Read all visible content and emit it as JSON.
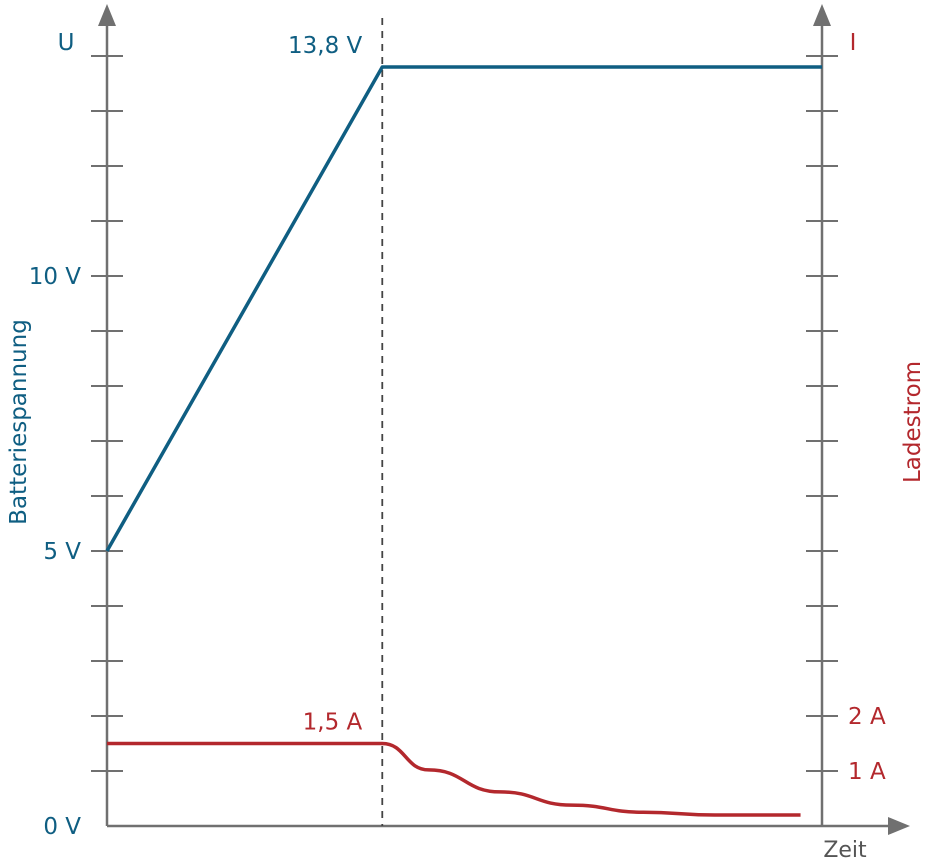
{
  "chart_data": {
    "type": "line",
    "x_label": "Zeit",
    "y_left": {
      "symbol": "U",
      "label": "Batteriespannung",
      "range": [
        0,
        14.5
      ],
      "tick_step": 1,
      "tick_labels": [
        {
          "value": 0,
          "text": "0 V"
        },
        {
          "value": 5,
          "text": "5 V"
        },
        {
          "value": 10,
          "text": "10 V"
        }
      ],
      "color": "#0f5e82"
    },
    "y_right": {
      "symbol": "I",
      "label": "Ladestrom",
      "range": [
        0,
        14.5
      ],
      "tick_step": 1,
      "tick_labels": [
        {
          "value": 1,
          "text": "1 A"
        },
        {
          "value": 2,
          "text": "2 A"
        }
      ],
      "color": "#b3282d"
    },
    "x_range": [
      0,
      1
    ],
    "switch_x": 0.385,
    "series": [
      {
        "name": "Batteriespannung",
        "axis": "left",
        "color": "#0f5e82",
        "points": [
          [
            0,
            5
          ],
          [
            0.385,
            13.8
          ],
          [
            1.0,
            13.8
          ]
        ],
        "annotation": {
          "x": 0.385,
          "y": 13.8,
          "text": "13,8 V"
        }
      },
      {
        "name": "Ladestrom",
        "axis": "right",
        "color": "#b3282d",
        "points": [
          [
            0,
            1.5
          ],
          [
            0.385,
            1.5
          ],
          [
            0.45,
            1.02
          ],
          [
            0.55,
            0.62
          ],
          [
            0.65,
            0.38
          ],
          [
            0.75,
            0.25
          ],
          [
            0.85,
            0.2
          ],
          [
            0.97,
            0.2
          ]
        ],
        "annotation": {
          "x": 0.385,
          "y": 1.5,
          "text": "1,5 A"
        }
      }
    ]
  }
}
